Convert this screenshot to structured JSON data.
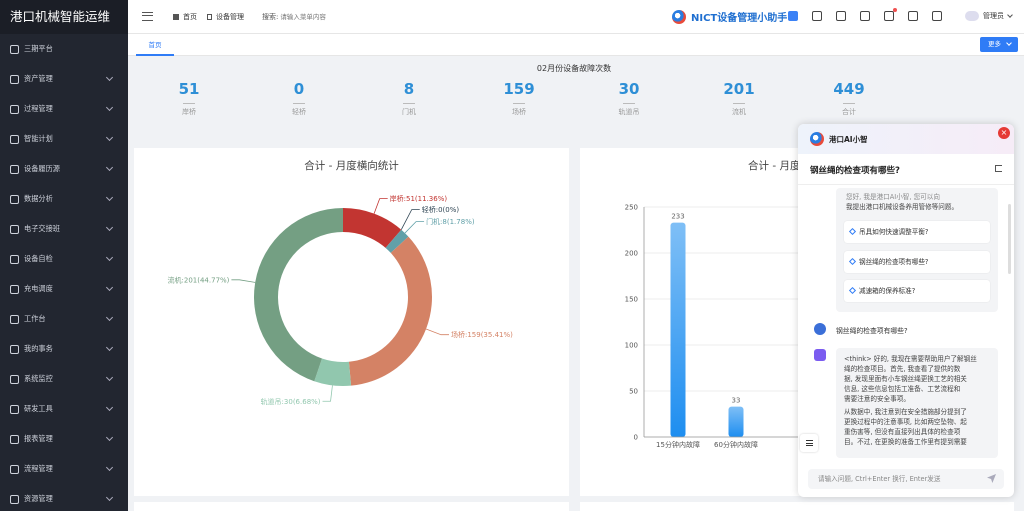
{
  "sidebar": {
    "title": "港口机械智能运维",
    "items": [
      {
        "label": "三期平台",
        "icon": "shield-icon",
        "arrow": false
      },
      {
        "label": "资产管理",
        "icon": "asset-icon",
        "arrow": true
      },
      {
        "label": "过程管理",
        "icon": "process-icon",
        "arrow": true
      },
      {
        "label": "智能计划",
        "icon": "plan-icon",
        "arrow": true
      },
      {
        "label": "设备履历源",
        "icon": "history-icon",
        "arrow": true
      },
      {
        "label": "数据分析",
        "icon": "analysis-icon",
        "arrow": true
      },
      {
        "label": "电子交接班",
        "icon": "handover-icon",
        "arrow": true
      },
      {
        "label": "设备自检",
        "icon": "selfcheck-icon",
        "arrow": true
      },
      {
        "label": "充电调度",
        "icon": "charge-icon",
        "arrow": true
      },
      {
        "label": "工作台",
        "icon": "desk-icon",
        "arrow": true
      },
      {
        "label": "我的事务",
        "icon": "bell-icon",
        "arrow": true
      },
      {
        "label": "系统监控",
        "icon": "monitor-icon",
        "arrow": true
      },
      {
        "label": "研发工具",
        "icon": "tool-icon",
        "arrow": true
      },
      {
        "label": "报表管理",
        "icon": "report-icon",
        "arrow": true
      },
      {
        "label": "流程管理",
        "icon": "flow-icon",
        "arrow": true
      },
      {
        "label": "资源管理",
        "icon": "resource-icon",
        "arrow": true
      }
    ]
  },
  "header": {
    "breadcrumb_home": "首页",
    "breadcrumb_current": "设备管理",
    "search_label": "搜索:",
    "search_placeholder": "请输入菜单内容",
    "brand": "NICT设备管理小助手",
    "user": "管理员"
  },
  "tabs": {
    "home": "首页",
    "more": "更多"
  },
  "stats": {
    "title": "02月份设备故障次数",
    "items": [
      {
        "value": "51",
        "label": "岸桥"
      },
      {
        "value": "0",
        "label": "轻桥"
      },
      {
        "value": "8",
        "label": "门机"
      },
      {
        "value": "159",
        "label": "场桥"
      },
      {
        "value": "30",
        "label": "轨道吊"
      },
      {
        "value": "201",
        "label": "流机"
      },
      {
        "value": "449",
        "label": "合计"
      }
    ]
  },
  "chart_data": [
    {
      "type": "pie",
      "title": "合计 - 月度横向统计",
      "slices": [
        {
          "name": "岸桥",
          "value": 51,
          "label": "岸桥:51(11.36%)",
          "color": "#c23531"
        },
        {
          "name": "轻桥",
          "value": 0,
          "label": "轻桥:0(0%)",
          "color": "#2f4554"
        },
        {
          "name": "门机",
          "value": 8,
          "label": "门机:8(1.78%)",
          "color": "#61a0a8"
        },
        {
          "name": "场桥",
          "value": 159,
          "label": "场桥:159(35.41%)",
          "color": "#d48265"
        },
        {
          "name": "轨道吊",
          "value": 30,
          "label": "轨道吊:30(6.68%)",
          "color": "#91c7ae"
        },
        {
          "name": "流机",
          "value": 201,
          "label": "流机:201(44.77%)",
          "color": "#749f83"
        }
      ]
    },
    {
      "type": "bar",
      "title": "合计 - 月度",
      "categories": [
        "15分钟内故障",
        "60分钟内故障"
      ],
      "values": [
        233,
        33
      ],
      "ylim": [
        0,
        250
      ],
      "yticks": [
        0,
        50,
        100,
        150,
        200,
        250
      ]
    }
  ],
  "chat": {
    "title": "港口AI小智",
    "question_title": "钢丝绳的检查项有哪些?",
    "intro_line1": "您好, 我是港口AI小智, 您可以向",
    "intro_line2": "我提出港口机械设备养用管修等问题。",
    "suggestions": [
      "吊具如何快速调整平衡?",
      "钢丝绳的检查项有哪些?",
      "减速箱的保养标准?"
    ],
    "user_message": "钢丝绳的检查项有哪些?",
    "answer_lines": [
      "<think> 好的, 我现在需要帮助用户了解钢丝",
      "绳的检查项目。首先, 我查看了提供的数",
      "据, 发现里面有小车钢丝绳更换工艺的相关",
      "信息, 这些信息包括工准备、工艺流程和",
      "需要注意的安全事项。",
      "从数据中, 我注意到在安全措施部分提到了",
      "更换过程中的注意事项, 比如两空坠物、起",
      "重伤害等, 但没有直接列出具体的检查项",
      "目。不过, 在更换的准备工作里有提到需要"
    ],
    "input_placeholder": "请输入问题, Ctrl+Enter 换行, Enter发送"
  }
}
